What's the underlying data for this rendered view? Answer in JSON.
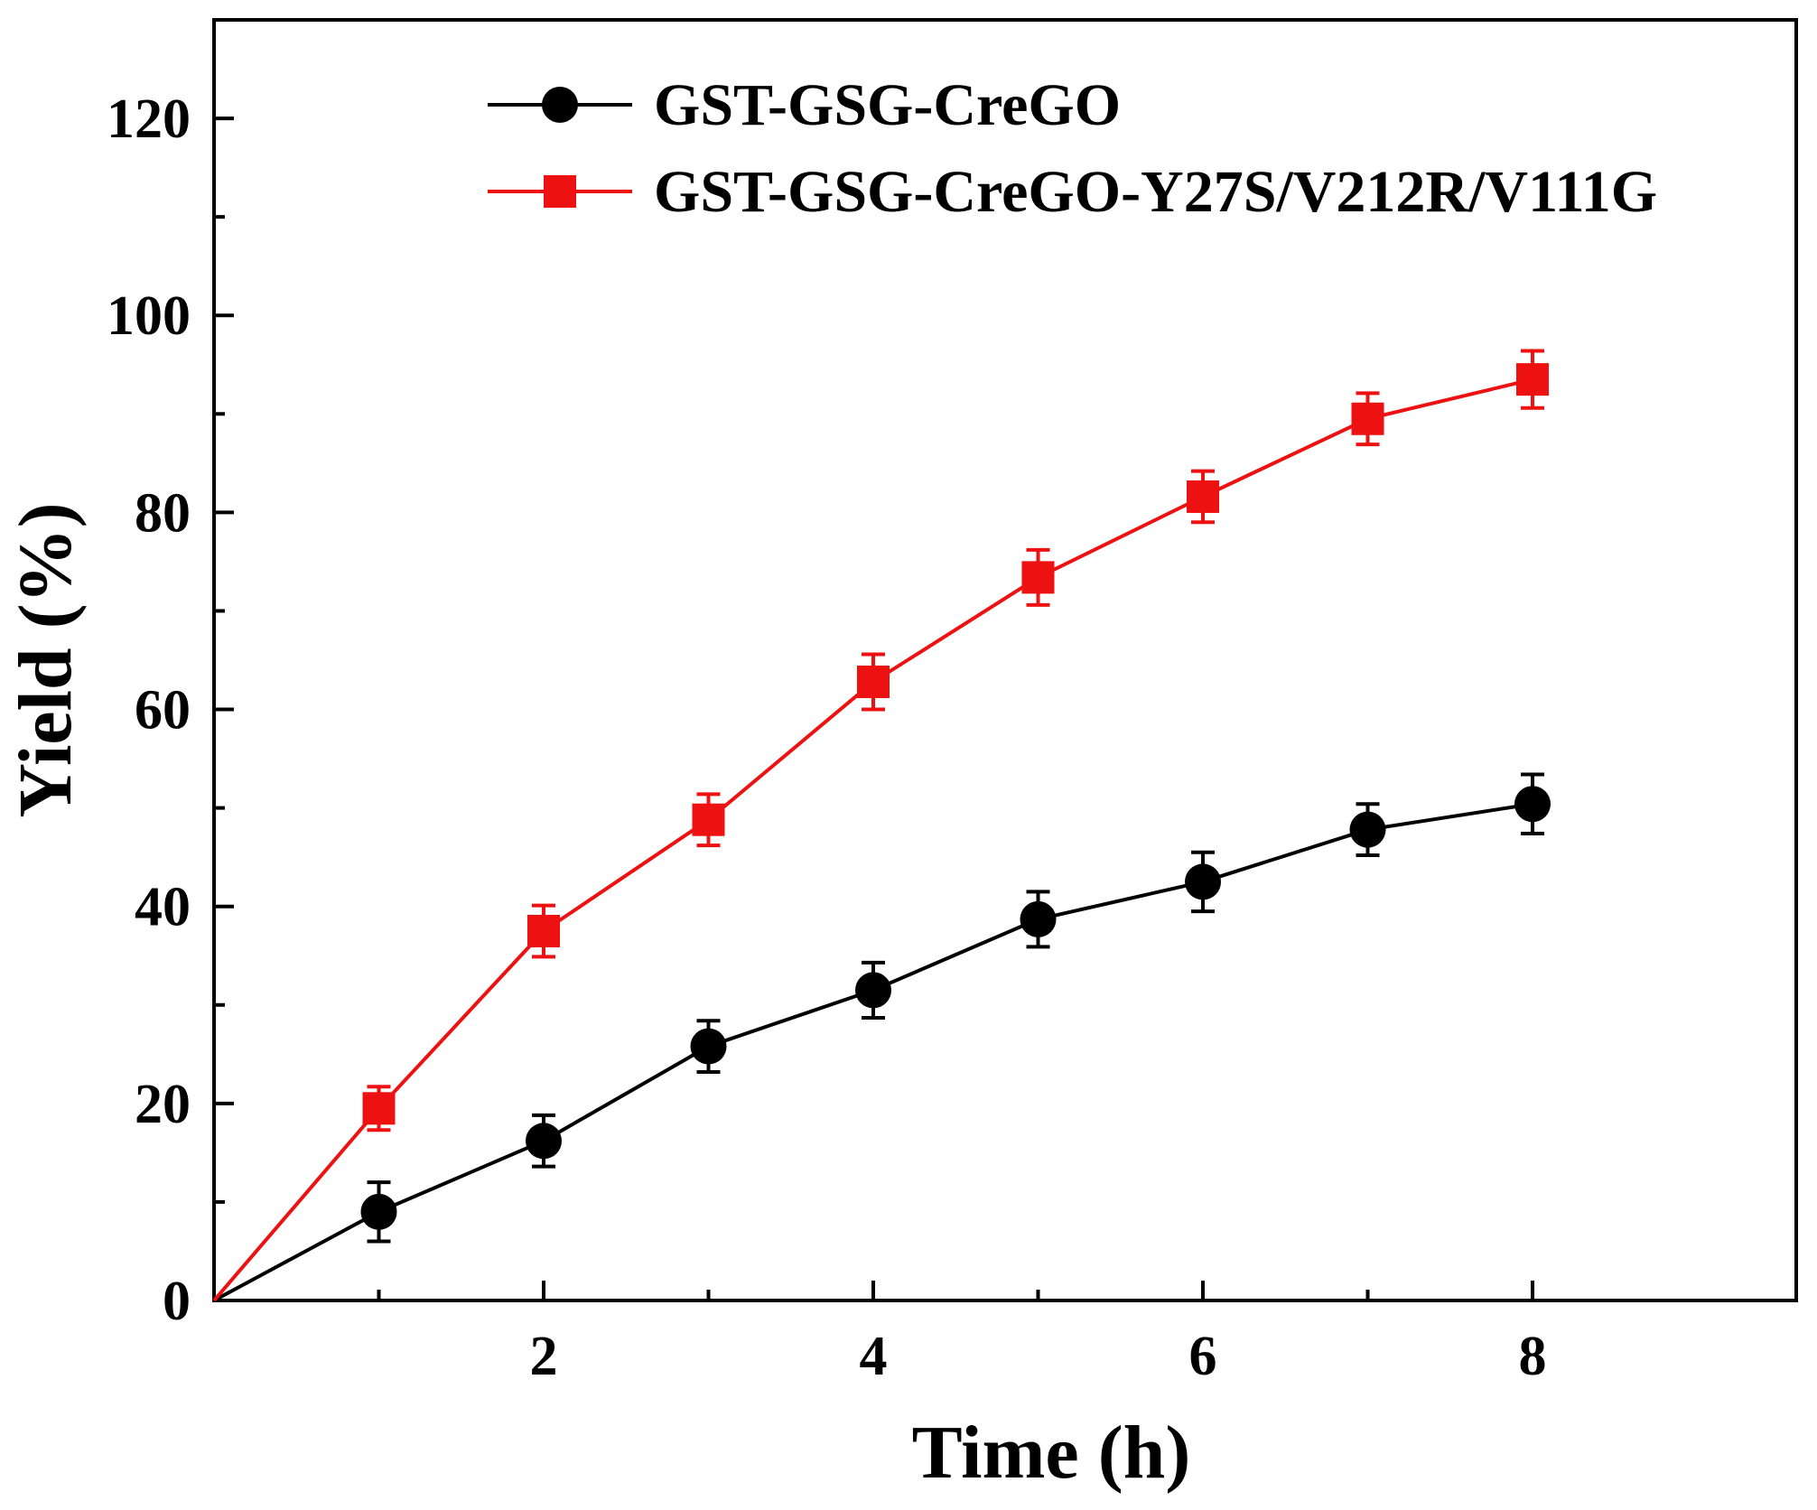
{
  "chart_data": {
    "type": "line",
    "xlabel": "Time (h)",
    "ylabel": "Yield (%)",
    "xlim": [
      0,
      9.6
    ],
    "ylim": [
      0,
      130
    ],
    "xticks": [
      2,
      4,
      6,
      8
    ],
    "yticks": [
      0,
      20,
      40,
      60,
      80,
      100,
      120
    ],
    "grid": false,
    "legend_position": "top-left",
    "series": [
      {
        "name": "GST-GSG-CreGO",
        "color": "#000000",
        "marker": "circle",
        "x": [
          0,
          1,
          2,
          3,
          4,
          5,
          6,
          7,
          8
        ],
        "y": [
          0,
          9,
          16.2,
          25.8,
          31.5,
          38.7,
          42.5,
          47.8,
          50.4
        ],
        "error": [
          0,
          3,
          2.6,
          2.6,
          2.8,
          2.8,
          3,
          2.6,
          3
        ]
      },
      {
        "name": "GST-GSG-CreGO-Y27S/V212R/V111G",
        "color": "#ee1111",
        "marker": "square",
        "x": [
          0,
          1,
          2,
          3,
          4,
          5,
          6,
          7,
          8
        ],
        "y": [
          0,
          19.5,
          37.5,
          48.8,
          62.8,
          73.4,
          81.6,
          89.5,
          93.5
        ],
        "error": [
          0,
          2.2,
          2.6,
          2.6,
          2.8,
          2.8,
          2.6,
          2.6,
          2.9
        ]
      }
    ]
  }
}
